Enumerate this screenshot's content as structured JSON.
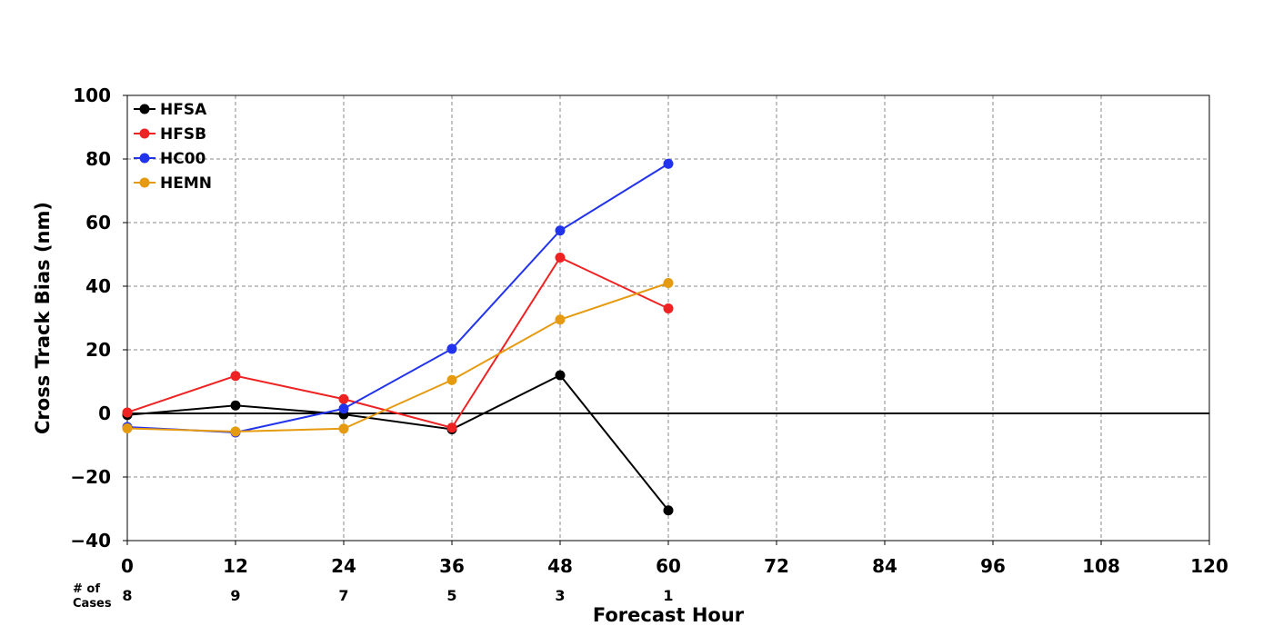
{
  "chart_data": {
    "type": "line",
    "title": "",
    "xlabel": "Forecast Hour",
    "ylabel": "Cross Track Bias (nm)",
    "xlim": [
      0,
      120
    ],
    "ylim": [
      -40,
      100
    ],
    "x_ticks": [
      0,
      12,
      24,
      36,
      48,
      60,
      72,
      84,
      96,
      108,
      120
    ],
    "y_ticks": [
      -40,
      -20,
      0,
      20,
      40,
      60,
      80,
      100
    ],
    "x_tick_labels": [
      "0",
      "12",
      "24",
      "36",
      "48",
      "60",
      "72",
      "84",
      "96",
      "108",
      "120"
    ],
    "y_tick_labels": [
      "−40",
      "−20",
      "0",
      "20",
      "40",
      "60",
      "80",
      "100"
    ],
    "grid": true,
    "zero_line": true,
    "legend_position": "top-left",
    "x": [
      0,
      12,
      24,
      36,
      48,
      60
    ],
    "series": [
      {
        "name": "HFSA",
        "color": "#000000",
        "values": [
          -0.5,
          2.5,
          -0.3,
          -5,
          12,
          -30.5
        ]
      },
      {
        "name": "HFSB",
        "color": "#ee2222",
        "values": [
          0.3,
          11.8,
          4.5,
          -4.5,
          49,
          33
        ]
      },
      {
        "name": "HC00",
        "color": "#2233ee",
        "values": [
          -4.3,
          -6,
          1.5,
          20.3,
          57.5,
          78.5
        ]
      },
      {
        "name": "HEMN",
        "color": "#e69a10",
        "values": [
          -4.7,
          -5.7,
          -4.8,
          10.5,
          29.5,
          41
        ]
      }
    ],
    "cases": {
      "label_line1": "# of",
      "label_line2": "Cases",
      "x": [
        0,
        12,
        24,
        36,
        48,
        60
      ],
      "values": [
        "8",
        "9",
        "7",
        "5",
        "3",
        "1"
      ]
    }
  }
}
